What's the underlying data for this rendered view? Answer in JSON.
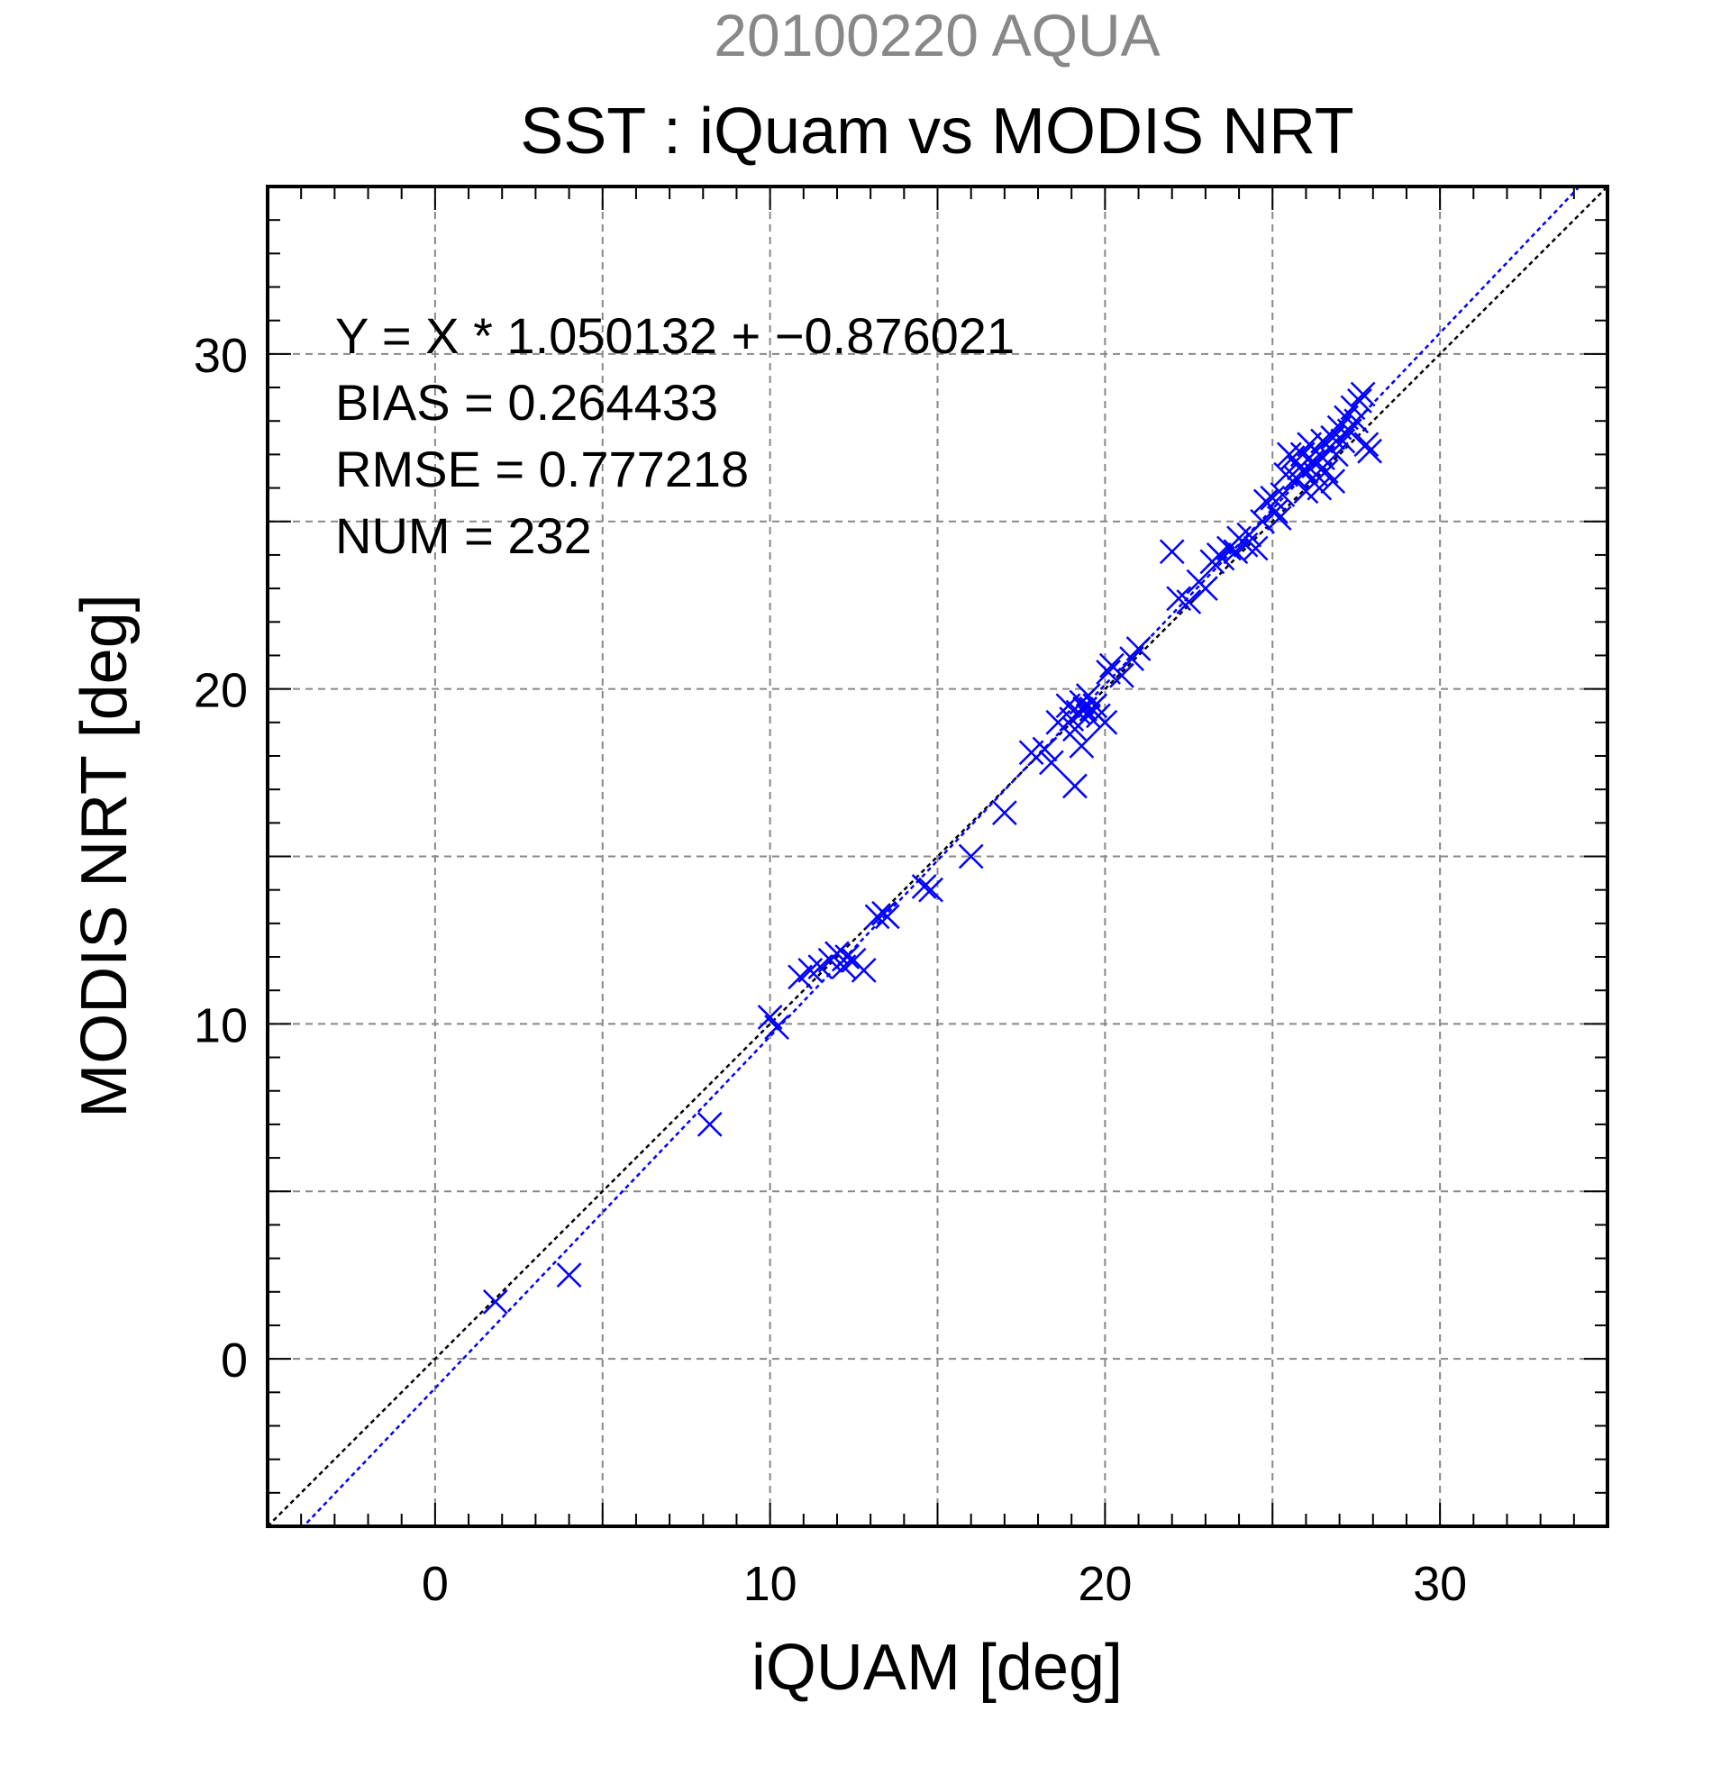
{
  "chart_data": {
    "type": "scatter",
    "title": "20100220 AQUA",
    "subtitle": "SST : iQuam vs MODIS NRT",
    "xlabel": "iQUAM [deg]",
    "ylabel": "MODIS NRT [deg]",
    "xlim": [
      -5,
      35
    ],
    "ylim": [
      -5,
      35
    ],
    "xticks": [
      "0",
      "10",
      "20",
      "30"
    ],
    "yticks": [
      "0",
      "10",
      "20",
      "30"
    ],
    "grid": true,
    "colors": {
      "points": "#0000ff",
      "fit_line": "#0000ff",
      "identity_line": "#000000",
      "title": "#888888",
      "grid": "#888888"
    },
    "annotations": [
      "Y = X * 1.050132 + −0.876021",
      "BIAS = 0.264433",
      "RMSE = 0.777218",
      "NUM = 232"
    ],
    "fit": {
      "slope": 1.050132,
      "intercept": -0.876021
    },
    "points": [
      [
        1.8,
        1.7
      ],
      [
        4.0,
        2.5
      ],
      [
        8.2,
        7.0
      ],
      [
        10.0,
        10.2
      ],
      [
        10.2,
        9.9
      ],
      [
        10.9,
        11.4
      ],
      [
        11.2,
        11.6
      ],
      [
        11.5,
        11.7
      ],
      [
        11.8,
        11.9
      ],
      [
        12.0,
        12.1
      ],
      [
        12.2,
        11.7
      ],
      [
        12.3,
        12.0
      ],
      [
        12.5,
        11.9
      ],
      [
        12.8,
        11.6
      ],
      [
        13.2,
        13.2
      ],
      [
        13.4,
        13.3
      ],
      [
        13.5,
        13.2
      ],
      [
        14.6,
        14.1
      ],
      [
        14.8,
        14.0
      ],
      [
        16.0,
        15.0
      ],
      [
        17.0,
        16.3
      ],
      [
        17.8,
        18.1
      ],
      [
        18.2,
        18.2
      ],
      [
        18.4,
        17.8
      ],
      [
        18.6,
        19.0
      ],
      [
        18.9,
        19.5
      ],
      [
        19.0,
        19.1
      ],
      [
        19.1,
        18.8
      ],
      [
        19.1,
        17.1
      ],
      [
        19.2,
        19.3
      ],
      [
        19.3,
        19.6
      ],
      [
        19.3,
        18.3
      ],
      [
        19.4,
        19.4
      ],
      [
        19.5,
        19.2
      ],
      [
        19.5,
        19.8
      ],
      [
        19.6,
        19.4
      ],
      [
        19.7,
        19.5
      ],
      [
        19.8,
        19.2
      ],
      [
        20.0,
        19.0
      ],
      [
        20.1,
        20.5
      ],
      [
        20.2,
        20.7
      ],
      [
        20.5,
        20.4
      ],
      [
        20.8,
        20.9
      ],
      [
        21.0,
        21.2
      ],
      [
        22.0,
        24.1
      ],
      [
        22.2,
        22.7
      ],
      [
        22.5,
        22.6
      ],
      [
        22.8,
        23.2
      ],
      [
        23.0,
        23.0
      ],
      [
        23.2,
        23.8
      ],
      [
        23.4,
        24.0
      ],
      [
        23.5,
        23.9
      ],
      [
        23.7,
        24.2
      ],
      [
        23.9,
        24.1
      ],
      [
        24.0,
        24.5
      ],
      [
        24.2,
        24.3
      ],
      [
        24.3,
        24.6
      ],
      [
        24.5,
        24.2
      ],
      [
        24.7,
        25.0
      ],
      [
        24.8,
        25.6
      ],
      [
        25.0,
        25.7
      ],
      [
        25.1,
        25.3
      ],
      [
        25.2,
        25.1
      ],
      [
        25.3,
        25.8
      ],
      [
        25.4,
        26.4
      ],
      [
        25.5,
        27.0
      ],
      [
        25.6,
        26.9
      ],
      [
        25.7,
        26.3
      ],
      [
        25.8,
        26.6
      ],
      [
        25.9,
        27.0
      ],
      [
        26.0,
        26.5
      ],
      [
        26.0,
        25.9
      ],
      [
        26.1,
        27.3
      ],
      [
        26.2,
        26.8
      ],
      [
        26.3,
        26.4
      ],
      [
        26.3,
        27.1
      ],
      [
        26.4,
        26.0
      ],
      [
        26.5,
        27.4
      ],
      [
        26.5,
        26.9
      ],
      [
        26.6,
        26.5
      ],
      [
        26.7,
        27.2
      ],
      [
        26.8,
        27.5
      ],
      [
        26.8,
        26.2
      ],
      [
        26.9,
        27.0
      ],
      [
        27.0,
        27.8
      ],
      [
        27.1,
        27.4
      ],
      [
        27.2,
        28.1
      ],
      [
        27.3,
        27.7
      ],
      [
        27.4,
        28.4
      ],
      [
        27.5,
        28.0
      ],
      [
        27.6,
        28.6
      ],
      [
        27.7,
        28.8
      ],
      [
        27.8,
        27.3
      ],
      [
        27.9,
        27.1
      ]
    ]
  }
}
